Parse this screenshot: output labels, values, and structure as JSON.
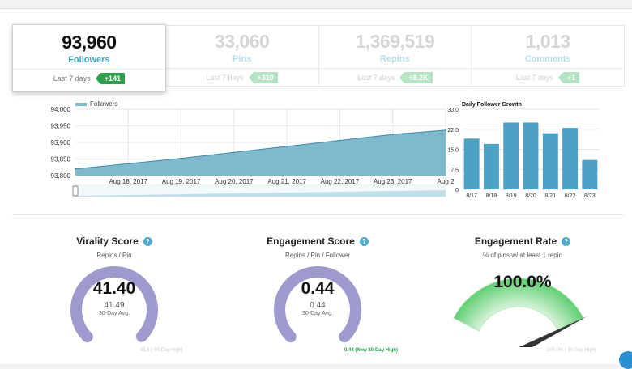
{
  "tabs": [
    {
      "name": "followers",
      "value": "93,960",
      "label": "Followers",
      "period": "Last 7 days",
      "delta": "+141",
      "active": true
    },
    {
      "name": "pins",
      "value": "33,060",
      "label": "Pins",
      "period": "Last 7 days",
      "delta": "+310",
      "active": false
    },
    {
      "name": "repins",
      "value": "1,369,519",
      "label": "Repins",
      "period": "Last 7 days",
      "delta": "+8.2K",
      "active": false
    },
    {
      "name": "comments",
      "value": "1,013",
      "label": "Comments",
      "period": "Last 7 days",
      "delta": "+1",
      "active": false
    }
  ],
  "chart_data": [
    {
      "type": "area",
      "title": "",
      "legend": "Followers",
      "legend_position": "top-left",
      "x_ticks": [
        "Aug 18, 2017",
        "Aug 19, 2017",
        "Aug 20, 2017",
        "Aug 21, 2017",
        "Aug 22, 2017",
        "Aug 23, 2017",
        "Aug 2"
      ],
      "y_ticks": [
        "94,000",
        "93,950",
        "93,900",
        "93,850",
        "93,800"
      ],
      "ylim": [
        93800,
        94000
      ],
      "x": [
        0,
        1,
        2,
        3,
        4,
        5,
        6,
        7
      ],
      "values": [
        93820,
        93836,
        93852,
        93870,
        93888,
        93906,
        93924,
        93937
      ],
      "grid": true,
      "color": "#7fb9cd",
      "line_color": "#3f8aa8"
    },
    {
      "type": "bar",
      "title": "Daily Follower Growth",
      "categories": [
        "8/17",
        "8/18",
        "8/19",
        "8/20",
        "8/21",
        "8/22",
        "8/23"
      ],
      "values": [
        19,
        17,
        25,
        25,
        21,
        23,
        11
      ],
      "y_ticks": [
        "30.0",
        "22.5",
        "15.0",
        "7.5",
        "0"
      ],
      "ylim": [
        0,
        30
      ],
      "grid": true,
      "color": "#4ba2c5"
    }
  ],
  "gauges": [
    {
      "title": "Virality Score",
      "help": "?",
      "subtitle": "Repins / Pin",
      "value": "41.40",
      "avg": "41.49",
      "avg_label": "30-Day Avg.",
      "high_label": "41.6 ( 30-Day High)",
      "fraction": 0.995,
      "color": "#9d9acd"
    },
    {
      "title": "Engagement Score",
      "help": "?",
      "subtitle": "Repins / Pin / Follower",
      "value": "0.44",
      "avg": "0.44",
      "avg_label": "30-Day Avg.",
      "high_label": "0.44 (New 30-Day High)",
      "fraction": 1.0,
      "color": "#9d9acd"
    },
    {
      "title": "Engagement Rate",
      "help": "?",
      "subtitle": "% of pins w/ at least 1 repin",
      "value": "100.0%",
      "high_label": "100.0% ( 30-Day High)",
      "fraction": 1.0,
      "color": "#5fcf71"
    }
  ]
}
